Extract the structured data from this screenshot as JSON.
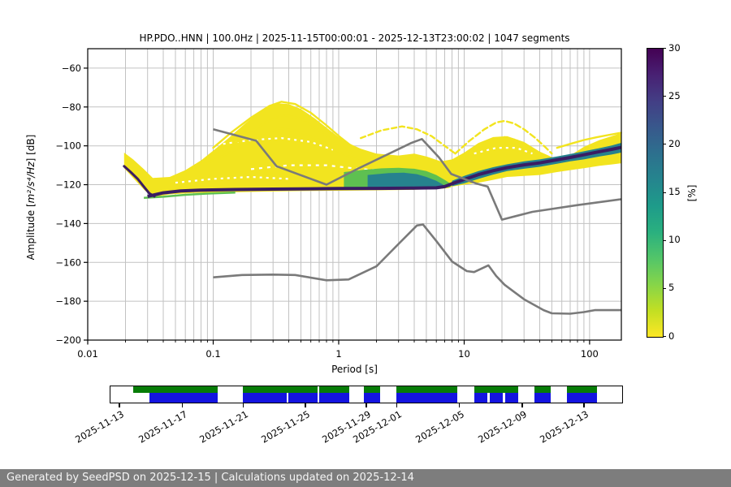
{
  "title": "HP.PDO..HNN | 100.0Hz | 2025-11-15T00:00:01 - 2025-12-13T23:00:02 | 1047 segments",
  "footer": {
    "text": "Generated by SeedPSD on 2025-12-15 | Calculations updated on 2025-12-14",
    "bg_color": "#7d7d7d",
    "text_color": "#f5f5f5"
  },
  "chart_data": {
    "type": "heatmap",
    "title": "HP.PDO..HNN | 100.0Hz | 2025-11-15T00:00:01 - 2025-12-13T23:00:02 | 1047 segments",
    "xlabel": "Period [s]",
    "ylabel_prefix": "Amplitude [",
    "ylabel_math": "m²/s⁴/Hz",
    "ylabel_suffix": "] [dB]",
    "x_scale": "log",
    "xlim": [
      0.01,
      179
    ],
    "ylim": [
      -200,
      -50
    ],
    "grid": true,
    "grid_color": "#c2c2c2",
    "x_ticks": [
      {
        "v": 0.01,
        "label": "0.01"
      },
      {
        "v": 0.1,
        "label": "0.1"
      },
      {
        "v": 1,
        "label": "1"
      },
      {
        "v": 10,
        "label": "10"
      },
      {
        "v": 100,
        "label": "100"
      }
    ],
    "y_ticks": [
      {
        "v": -60,
        "label": "−60"
      },
      {
        "v": -80,
        "label": "−80"
      },
      {
        "v": -100,
        "label": "−100"
      },
      {
        "v": -120,
        "label": "−120"
      },
      {
        "v": -140,
        "label": "−140"
      },
      {
        "v": -160,
        "label": "−160"
      },
      {
        "v": -180,
        "label": "−180"
      },
      {
        "v": -200,
        "label": "−200"
      }
    ],
    "colorbar": {
      "label": "[%]",
      "min": 0,
      "max": 30,
      "ticks": [
        0,
        5,
        10,
        15,
        20,
        25,
        30
      ],
      "colors_bottom_to_top": [
        "#fde725",
        "#c2df23",
        "#86d549",
        "#52c569",
        "#2ab07f",
        "#1e9b8a",
        "#25858e",
        "#2d708e",
        "#38588c",
        "#433e85",
        "#482173",
        "#440154"
      ]
    },
    "noise_models": {
      "color": "#7a7a7a",
      "nhnm": [
        [
          0.1,
          -91.5
        ],
        [
          0.22,
          -97.4
        ],
        [
          0.32,
          -110.5
        ],
        [
          0.8,
          -120
        ],
        [
          1.4,
          -112
        ],
        [
          3.8,
          -98.5
        ],
        [
          4.6,
          -96.5
        ],
        [
          6.3,
          -106
        ],
        [
          7.9,
          -114.5
        ],
        [
          12.6,
          -119.5
        ],
        [
          15.4,
          -121
        ],
        [
          20,
          -138
        ],
        [
          35,
          -134
        ],
        [
          80,
          -130.5
        ],
        [
          178,
          -127.5
        ]
      ],
      "nlnm": [
        [
          0.1,
          -167.7
        ],
        [
          0.17,
          -166.5
        ],
        [
          0.3,
          -166.3
        ],
        [
          0.45,
          -166.5
        ],
        [
          0.8,
          -169.2
        ],
        [
          1.2,
          -168.8
        ],
        [
          2,
          -162
        ],
        [
          3,
          -150.5
        ],
        [
          4.2,
          -141
        ],
        [
          4.7,
          -140.5
        ],
        [
          6,
          -149
        ],
        [
          8,
          -159.5
        ],
        [
          10.5,
          -164.5
        ],
        [
          12,
          -165
        ],
        [
          15.6,
          -161.5
        ],
        [
          18,
          -167
        ],
        [
          21,
          -171.5
        ],
        [
          30,
          -179
        ],
        [
          43,
          -184.6
        ],
        [
          50,
          -186.2
        ],
        [
          70,
          -186.4
        ],
        [
          90,
          -185.6
        ],
        [
          110,
          -184.6
        ],
        [
          178,
          -184.6
        ]
      ]
    },
    "psd_cloud": {
      "colors": {
        "yellow": "#f2e41f",
        "green": "#5ec051",
        "teal": "#26828e",
        "dark": "#3a1c63"
      },
      "upper_envelope": [
        [
          0.0195,
          -103.5
        ],
        [
          0.023,
          -107
        ],
        [
          0.028,
          -112
        ],
        [
          0.033,
          -116.5
        ],
        [
          0.045,
          -116
        ],
        [
          0.06,
          -112.5
        ],
        [
          0.08,
          -107.5
        ],
        [
          0.1,
          -102.5
        ],
        [
          0.13,
          -96.5
        ],
        [
          0.18,
          -88.5
        ],
        [
          0.25,
          -81
        ],
        [
          0.32,
          -78
        ],
        [
          0.4,
          -78.5
        ],
        [
          0.5,
          -81
        ],
        [
          0.65,
          -86
        ],
        [
          0.85,
          -92
        ],
        [
          1.1,
          -97.5
        ],
        [
          1.5,
          -101.5
        ],
        [
          2,
          -104
        ],
        [
          3,
          -105
        ],
        [
          4,
          -104
        ],
        [
          5,
          -105.5
        ],
        [
          6.5,
          -108
        ],
        [
          8,
          -107
        ],
        [
          10,
          -103.5
        ],
        [
          13,
          -98.5
        ],
        [
          17,
          -95.5
        ],
        [
          22,
          -95
        ],
        [
          30,
          -98
        ],
        [
          40,
          -103
        ],
        [
          55,
          -107
        ],
        [
          70,
          -105
        ],
        [
          90,
          -100.5
        ],
        [
          120,
          -97
        ],
        [
          150,
          -95
        ],
        [
          178,
          -93.5
        ]
      ],
      "lower_envelope": [
        [
          0.0195,
          -111.5
        ],
        [
          0.023,
          -116.5
        ],
        [
          0.028,
          -122.5
        ],
        [
          0.033,
          -126.5
        ],
        [
          0.045,
          -125
        ],
        [
          0.07,
          -124.3
        ],
        [
          0.12,
          -124
        ],
        [
          0.25,
          -123.6
        ],
        [
          0.5,
          -123.3
        ],
        [
          1,
          -123.1
        ],
        [
          2,
          -122.9
        ],
        [
          4,
          -122.6
        ],
        [
          6,
          -122.3
        ],
        [
          7.5,
          -121.8
        ],
        [
          8,
          -121
        ],
        [
          10,
          -120
        ],
        [
          13,
          -119
        ],
        [
          17,
          -117.5
        ],
        [
          22,
          -116
        ],
        [
          30,
          -115.5
        ],
        [
          40,
          -115
        ],
        [
          55,
          -113.5
        ],
        [
          70,
          -112.5
        ],
        [
          90,
          -111.5
        ],
        [
          120,
          -110.3
        ],
        [
          150,
          -109.6
        ],
        [
          178,
          -109
        ]
      ],
      "mode_ridge": [
        [
          0.03,
          -126
        ],
        [
          0.04,
          -124.2
        ],
        [
          0.055,
          -123.2
        ],
        [
          0.08,
          -122.8
        ],
        [
          0.15,
          -122.5
        ],
        [
          0.3,
          -122.3
        ],
        [
          0.6,
          -122.1
        ],
        [
          1,
          -122
        ],
        [
          2,
          -121.9
        ],
        [
          4,
          -121.8
        ],
        [
          6,
          -121.6
        ],
        [
          7,
          -121
        ],
        [
          8,
          -119.5
        ],
        [
          10,
          -117.3
        ],
        [
          13,
          -114.8
        ],
        [
          17,
          -112.8
        ],
        [
          22,
          -111.2
        ],
        [
          30,
          -109.8
        ],
        [
          40,
          -108.8
        ],
        [
          55,
          -107.2
        ],
        [
          70,
          -106
        ],
        [
          90,
          -104.6
        ],
        [
          120,
          -103
        ],
        [
          150,
          -101.8
        ],
        [
          178,
          -100.8
        ]
      ],
      "left_dark_edge": [
        [
          0.0195,
          -110.5
        ],
        [
          0.022,
          -113.5
        ],
        [
          0.025,
          -117
        ],
        [
          0.028,
          -121
        ],
        [
          0.031,
          -124.5
        ],
        [
          0.034,
          -126
        ]
      ],
      "left_green_fringe": [
        [
          0.028,
          -126.8
        ],
        [
          0.04,
          -126.2
        ],
        [
          0.06,
          -125.2
        ],
        [
          0.09,
          -124.6
        ],
        [
          0.15,
          -124.1
        ]
      ],
      "green_blob": [
        [
          1.1,
          -113.5
        ],
        [
          1.6,
          -112.3
        ],
        [
          2.2,
          -111.6
        ],
        [
          3,
          -111.3
        ],
        [
          4,
          -111.8
        ],
        [
          5,
          -113
        ],
        [
          6,
          -115
        ],
        [
          7,
          -117.5
        ],
        [
          7.8,
          -119.5
        ],
        [
          7.8,
          -121.3
        ],
        [
          6,
          -121.6
        ],
        [
          4,
          -121.8
        ],
        [
          2.5,
          -122
        ],
        [
          1.5,
          -122.2
        ],
        [
          1.1,
          -122.1
        ]
      ],
      "teal_blob": [
        [
          1.7,
          -115
        ],
        [
          2.5,
          -114
        ],
        [
          3.3,
          -113.8
        ],
        [
          4.2,
          -114.6
        ],
        [
          5,
          -116
        ],
        [
          6,
          -118
        ],
        [
          6.8,
          -120
        ],
        [
          6.8,
          -121.4
        ],
        [
          5,
          -121.6
        ],
        [
          3,
          -121.8
        ],
        [
          2,
          -121.9
        ],
        [
          1.7,
          -121.8
        ]
      ],
      "teal_band": [
        [
          8,
          -118
        ],
        [
          10,
          -115.5
        ],
        [
          13,
          -113
        ],
        [
          17,
          -111
        ],
        [
          22,
          -109.5
        ],
        [
          30,
          -108
        ],
        [
          40,
          -107
        ],
        [
          55,
          -105.5
        ],
        [
          70,
          -104.2
        ],
        [
          90,
          -102.8
        ],
        [
          120,
          -101.2
        ],
        [
          150,
          -99.8
        ],
        [
          178,
          -98.5
        ],
        [
          178,
          -103.5
        ],
        [
          150,
          -104.5
        ],
        [
          120,
          -105.5
        ],
        [
          90,
          -107
        ],
        [
          70,
          -108
        ],
        [
          55,
          -109.2
        ],
        [
          40,
          -110.8
        ],
        [
          30,
          -111.8
        ],
        [
          22,
          -113
        ],
        [
          17,
          -114.8
        ],
        [
          13,
          -117
        ],
        [
          10,
          -119.3
        ],
        [
          8,
          -120.8
        ]
      ],
      "yellow_arcs": [
        {
          "dash": "",
          "points": [
            [
              0.1,
              -101
            ],
            [
              0.14,
              -93
            ],
            [
              0.2,
              -85.5
            ],
            [
              0.28,
              -79.5
            ],
            [
              0.35,
              -77.3
            ],
            [
              0.45,
              -78.5
            ],
            [
              0.6,
              -83
            ],
            [
              0.8,
              -89.5
            ],
            [
              1.05,
              -96
            ],
            [
              1.35,
              -101.5
            ]
          ]
        },
        {
          "dash": "6 3",
          "points": [
            [
              0.12,
              -103
            ],
            [
              0.18,
              -95
            ],
            [
              0.26,
              -88
            ],
            [
              0.36,
              -84
            ],
            [
              0.5,
              -86
            ],
            [
              0.7,
              -92
            ],
            [
              0.95,
              -98.5
            ],
            [
              1.3,
              -104
            ]
          ]
        },
        {
          "dash": "",
          "points": [
            [
              0.09,
              -109
            ],
            [
              0.14,
              -103
            ],
            [
              0.22,
              -96.5
            ],
            [
              0.33,
              -91
            ],
            [
              0.48,
              -92.5
            ],
            [
              0.7,
              -97
            ],
            [
              1,
              -103
            ],
            [
              1.5,
              -108
            ],
            [
              2.1,
              -110
            ]
          ]
        },
        {
          "dash": "7 4",
          "points": [
            [
              8.5,
              -104
            ],
            [
              11,
              -97.5
            ],
            [
              14.5,
              -91.5
            ],
            [
              18,
              -88
            ],
            [
              21,
              -87.2
            ],
            [
              25,
              -88.5
            ],
            [
              30,
              -91.5
            ],
            [
              37,
              -96
            ],
            [
              44,
              -100.5
            ],
            [
              50,
              -104
            ]
          ]
        },
        {
          "dash": "5 3",
          "points": [
            [
              10,
              -106
            ],
            [
              13,
              -101
            ],
            [
              17,
              -97
            ],
            [
              21,
              -95.5
            ],
            [
              26,
              -97
            ],
            [
              32,
              -100.5
            ],
            [
              40,
              -105
            ]
          ]
        },
        {
          "dash": "",
          "points": [
            [
              55,
              -101
            ],
            [
              70,
              -99
            ],
            [
              90,
              -97
            ],
            [
              115,
              -95.5
            ],
            [
              145,
              -94.3
            ],
            [
              178,
              -93.3
            ]
          ]
        },
        {
          "dash": "6 4",
          "points": [
            [
              1.5,
              -96
            ],
            [
              2.2,
              -92
            ],
            [
              3.2,
              -90
            ],
            [
              4.2,
              -91.5
            ],
            [
              5.5,
              -95
            ],
            [
              7,
              -100
            ],
            [
              8.5,
              -104
            ]
          ]
        }
      ],
      "white_streaks": [
        {
          "dash": "3 5",
          "points": [
            [
              0.12,
              -99
            ],
            [
              0.2,
              -97
            ],
            [
              0.35,
              -96
            ],
            [
              0.6,
              -98
            ],
            [
              0.9,
              -102
            ]
          ]
        },
        {
          "dash": "4 6",
          "points": [
            [
              0.2,
              -112
            ],
            [
              0.4,
              -110
            ],
            [
              0.8,
              -110
            ],
            [
              1.5,
              -112
            ],
            [
              3,
              -113
            ]
          ]
        },
        {
          "dash": "3 5",
          "points": [
            [
              12,
              -104
            ],
            [
              18,
              -101
            ],
            [
              26,
              -101
            ],
            [
              35,
              -104
            ]
          ]
        },
        {
          "dash": "3 5",
          "points": [
            [
              0.05,
              -119
            ],
            [
              0.1,
              -117
            ],
            [
              0.2,
              -116
            ],
            [
              0.4,
              -117
            ]
          ]
        }
      ]
    },
    "availability": {
      "green_color": "#077c07",
      "blue_color": "#1414e0",
      "green_segments": [
        [
          0.0443,
          0.2104
        ],
        [
          0.2579,
          0.4051
        ],
        [
          0.4082,
          0.4668
        ],
        [
          0.4953,
          0.5269
        ],
        [
          0.5585,
          0.6772
        ],
        [
          0.7104,
          0.7975
        ],
        [
          0.8291,
          0.8608
        ],
        [
          0.8924,
          0.9509
        ]
      ],
      "blue_segments": [
        [
          0.0759,
          0.2104
        ],
        [
          0.2579,
          0.3449
        ],
        [
          0.3481,
          0.4051
        ],
        [
          0.4082,
          0.4668
        ],
        [
          0.4953,
          0.5269
        ],
        [
          0.5585,
          0.6772
        ],
        [
          0.7104,
          0.7373
        ],
        [
          0.7405,
          0.7674
        ],
        [
          0.7706,
          0.7975
        ],
        [
          0.8291,
          0.8608
        ],
        [
          0.8924,
          0.9509
        ]
      ],
      "tick_positions": [
        0.0158,
        0.1392,
        0.2579,
        0.3797,
        0.4984,
        0.5585,
        0.6804,
        0.8038,
        0.9241
      ],
      "tick_labels": [
        "2025-11-13",
        "2025-11-17",
        "2025-11-21",
        "2025-11-25",
        "2025-11-29",
        "2025-12-01",
        "2025-12-05",
        "2025-12-09",
        "2025-12-13"
      ]
    }
  }
}
